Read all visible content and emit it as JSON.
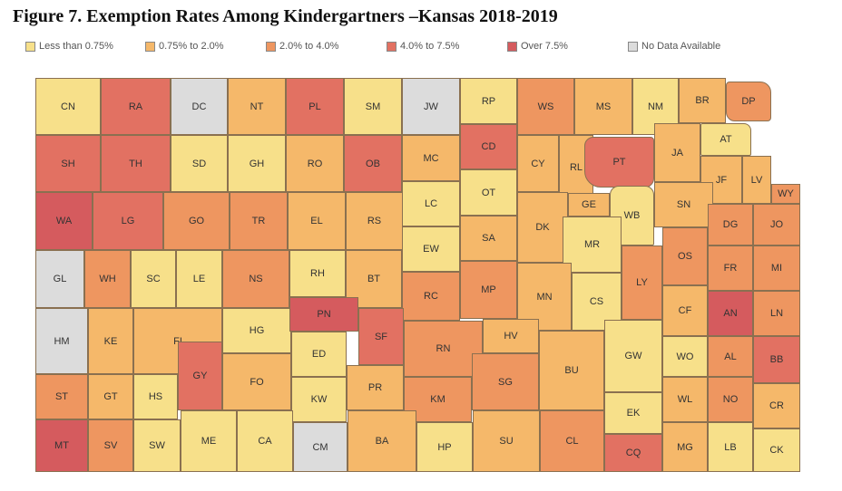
{
  "title": "Figure 7. Exemption Rates Among Kindergartners –Kansas 2018-2019",
  "legend": [
    {
      "label": "Less than 0.75%",
      "color": "#f7e08a"
    },
    {
      "label": "0.75% to 2.0%",
      "color": "#f5b86a"
    },
    {
      "label": "2.0% to 4.0%",
      "color": "#ee9660"
    },
    {
      "label": "4.0% to 7.5%",
      "color": "#e27162"
    },
    {
      "label": "Over 7.5%",
      "color": "#d55b5e"
    },
    {
      "label": "No Data Available",
      "color": "#dcdcdc"
    }
  ],
  "counties": [
    {
      "abbr": "CN",
      "category": "Less than 0.75%"
    },
    {
      "abbr": "RA",
      "category": "4.0% to 7.5%"
    },
    {
      "abbr": "DC",
      "category": "No Data Available"
    },
    {
      "abbr": "NT",
      "category": "0.75% to 2.0%"
    },
    {
      "abbr": "PL",
      "category": "4.0% to 7.5%"
    },
    {
      "abbr": "SM",
      "category": "Less than 0.75%"
    },
    {
      "abbr": "JW",
      "category": "No Data Available"
    },
    {
      "abbr": "RP",
      "category": "Less than 0.75%"
    },
    {
      "abbr": "WS",
      "category": "2.0% to 4.0%"
    },
    {
      "abbr": "MS",
      "category": "0.75% to 2.0%"
    },
    {
      "abbr": "NM",
      "category": "Less than 0.75%"
    },
    {
      "abbr": "BR",
      "category": "0.75% to 2.0%"
    },
    {
      "abbr": "DP",
      "category": "2.0% to 4.0%"
    },
    {
      "abbr": "SH",
      "category": "4.0% to 7.5%"
    },
    {
      "abbr": "TH",
      "category": "4.0% to 7.5%"
    },
    {
      "abbr": "SD",
      "category": "Less than 0.75%"
    },
    {
      "abbr": "GH",
      "category": "Less than 0.75%"
    },
    {
      "abbr": "RO",
      "category": "0.75% to 2.0%"
    },
    {
      "abbr": "OB",
      "category": "4.0% to 7.5%"
    },
    {
      "abbr": "MC",
      "category": "0.75% to 2.0%"
    },
    {
      "abbr": "CD",
      "category": "4.0% to 7.5%"
    },
    {
      "abbr": "CY",
      "category": "0.75% to 2.0%"
    },
    {
      "abbr": "RL",
      "category": "0.75% to 2.0%"
    },
    {
      "abbr": "PT",
      "category": "4.0% to 7.5%"
    },
    {
      "abbr": "JA",
      "category": "0.75% to 2.0%"
    },
    {
      "abbr": "AT",
      "category": "Less than 0.75%"
    },
    {
      "abbr": "JF",
      "category": "0.75% to 2.0%"
    },
    {
      "abbr": "LV",
      "category": "0.75% to 2.0%"
    },
    {
      "abbr": "WY",
      "category": "2.0% to 4.0%"
    },
    {
      "abbr": "WA",
      "category": "Over 7.5%"
    },
    {
      "abbr": "LG",
      "category": "4.0% to 7.5%"
    },
    {
      "abbr": "GO",
      "category": "2.0% to 4.0%"
    },
    {
      "abbr": "TR",
      "category": "2.0% to 4.0%"
    },
    {
      "abbr": "EL",
      "category": "0.75% to 2.0%"
    },
    {
      "abbr": "RS",
      "category": "0.75% to 2.0%"
    },
    {
      "abbr": "LC",
      "category": "Less than 0.75%"
    },
    {
      "abbr": "OT",
      "category": "Less than 0.75%"
    },
    {
      "abbr": "GE",
      "category": "0.75% to 2.0%"
    },
    {
      "abbr": "WB",
      "category": "Less than 0.75%"
    },
    {
      "abbr": "SN",
      "category": "0.75% to 2.0%"
    },
    {
      "abbr": "DG",
      "category": "2.0% to 4.0%"
    },
    {
      "abbr": "JO",
      "category": "2.0% to 4.0%"
    },
    {
      "abbr": "EW",
      "category": "Less than 0.75%"
    },
    {
      "abbr": "SA",
      "category": "0.75% to 2.0%"
    },
    {
      "abbr": "DK",
      "category": "0.75% to 2.0%"
    },
    {
      "abbr": "MR",
      "category": "Less than 0.75%"
    },
    {
      "abbr": "OS",
      "category": "2.0% to 4.0%"
    },
    {
      "abbr": "FR",
      "category": "2.0% to 4.0%"
    },
    {
      "abbr": "MI",
      "category": "2.0% to 4.0%"
    },
    {
      "abbr": "GL",
      "category": "No Data Available"
    },
    {
      "abbr": "WH",
      "category": "2.0% to 4.0%"
    },
    {
      "abbr": "SC",
      "category": "Less than 0.75%"
    },
    {
      "abbr": "LE",
      "category": "Less than 0.75%"
    },
    {
      "abbr": "NS",
      "category": "2.0% to 4.0%"
    },
    {
      "abbr": "RH",
      "category": "Less than 0.75%"
    },
    {
      "abbr": "BT",
      "category": "0.75% to 2.0%"
    },
    {
      "abbr": "RC",
      "category": "2.0% to 4.0%"
    },
    {
      "abbr": "MP",
      "category": "2.0% to 4.0%"
    },
    {
      "abbr": "MN",
      "category": "0.75% to 2.0%"
    },
    {
      "abbr": "CS",
      "category": "Less than 0.75%"
    },
    {
      "abbr": "LY",
      "category": "2.0% to 4.0%"
    },
    {
      "abbr": "CF",
      "category": "0.75% to 2.0%"
    },
    {
      "abbr": "AN",
      "category": "Over 7.5%"
    },
    {
      "abbr": "LN",
      "category": "2.0% to 4.0%"
    },
    {
      "abbr": "HM",
      "category": "No Data Available"
    },
    {
      "abbr": "KE",
      "category": "0.75% to 2.0%"
    },
    {
      "abbr": "FI",
      "category": "0.75% to 2.0%"
    },
    {
      "abbr": "HG",
      "category": "Less than 0.75%"
    },
    {
      "abbr": "PN",
      "category": "Over 7.5%"
    },
    {
      "abbr": "SF",
      "category": "4.0% to 7.5%"
    },
    {
      "abbr": "ED",
      "category": "Less than 0.75%"
    },
    {
      "abbr": "RN",
      "category": "2.0% to 4.0%"
    },
    {
      "abbr": "HV",
      "category": "0.75% to 2.0%"
    },
    {
      "abbr": "BU",
      "category": "0.75% to 2.0%"
    },
    {
      "abbr": "GW",
      "category": "Less than 0.75%"
    },
    {
      "abbr": "WO",
      "category": "Less than 0.75%"
    },
    {
      "abbr": "AL",
      "category": "2.0% to 4.0%"
    },
    {
      "abbr": "BB",
      "category": "4.0% to 7.5%"
    },
    {
      "abbr": "GY",
      "category": "4.0% to 7.5%"
    },
    {
      "abbr": "ST",
      "category": "2.0% to 4.0%"
    },
    {
      "abbr": "GT",
      "category": "0.75% to 2.0%"
    },
    {
      "abbr": "HS",
      "category": "Less than 0.75%"
    },
    {
      "abbr": "FO",
      "category": "0.75% to 2.0%"
    },
    {
      "abbr": "KW",
      "category": "Less than 0.75%"
    },
    {
      "abbr": "PR",
      "category": "0.75% to 2.0%"
    },
    {
      "abbr": "KM",
      "category": "2.0% to 4.0%"
    },
    {
      "abbr": "SG",
      "category": "2.0% to 4.0%"
    },
    {
      "abbr": "WL",
      "category": "0.75% to 2.0%"
    },
    {
      "abbr": "NO",
      "category": "2.0% to 4.0%"
    },
    {
      "abbr": "CR",
      "category": "0.75% to 2.0%"
    },
    {
      "abbr": "EK",
      "category": "Less than 0.75%"
    },
    {
      "abbr": "MT",
      "category": "Over 7.5%"
    },
    {
      "abbr": "SV",
      "category": "2.0% to 4.0%"
    },
    {
      "abbr": "SW",
      "category": "Less than 0.75%"
    },
    {
      "abbr": "ME",
      "category": "Less than 0.75%"
    },
    {
      "abbr": "CA",
      "category": "Less than 0.75%"
    },
    {
      "abbr": "CM",
      "category": "No Data Available"
    },
    {
      "abbr": "BA",
      "category": "0.75% to 2.0%"
    },
    {
      "abbr": "HP",
      "category": "Less than 0.75%"
    },
    {
      "abbr": "SU",
      "category": "0.75% to 2.0%"
    },
    {
      "abbr": "CL",
      "category": "2.0% to 4.0%"
    },
    {
      "abbr": "CQ",
      "category": "4.0% to 7.5%"
    },
    {
      "abbr": "MG",
      "category": "0.75% to 2.0%"
    },
    {
      "abbr": "LB",
      "category": "Less than 0.75%"
    },
    {
      "abbr": "CK",
      "category": "Less than 0.75%"
    }
  ]
}
